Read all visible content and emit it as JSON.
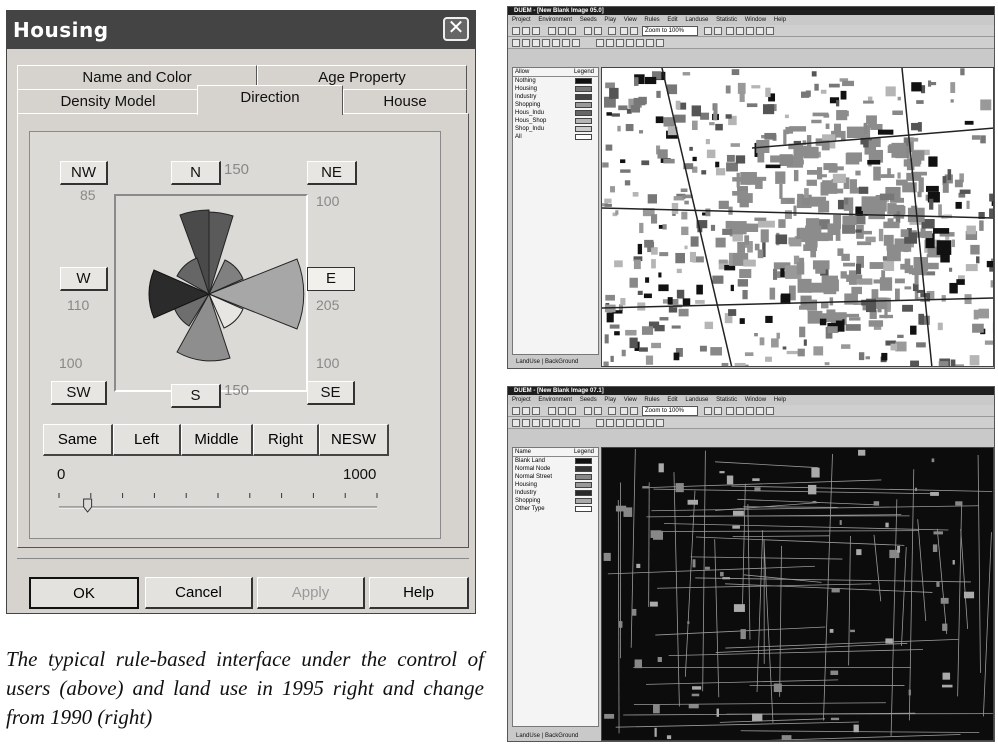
{
  "dialog": {
    "title": "Housing",
    "close_symbol": "✕",
    "tabs_back": [
      "Name and Color",
      "Age Property"
    ],
    "tabs_front": [
      "Density Model",
      "Direction",
      "House"
    ],
    "directions": {
      "nw": {
        "label": "NW",
        "value": "85"
      },
      "n": {
        "label": "N",
        "value": "150"
      },
      "ne": {
        "label": "NE",
        "value": "100"
      },
      "w": {
        "label": "W",
        "value": "110"
      },
      "e": {
        "label": "E",
        "value": "205"
      },
      "sw": {
        "label": "SW",
        "value": "100"
      },
      "s": {
        "label": "S",
        "value": "150"
      },
      "se": {
        "label": "SE",
        "value": "100"
      }
    },
    "mode_buttons": [
      "Same",
      "Left",
      "Middle",
      "Right",
      "NESW"
    ],
    "slider": {
      "min": "0",
      "max": "1000",
      "value_fraction": 0.09
    },
    "buttons": {
      "ok": "OK",
      "cancel": "Cancel",
      "apply": "Apply",
      "help": "Help"
    }
  },
  "caption": "The typical rule-based interface under the control of users (above) and land use in 1995 right and change from 1990 (right)",
  "screens": [
    {
      "title": "DUEM - [New Blank Image 05.0]",
      "menu": [
        "Project",
        "Environment",
        "Seeds",
        "Play",
        "View",
        "Rules",
        "Edit",
        "Landuse",
        "Statistic",
        "Window",
        "Help"
      ],
      "zoom": "Zoom to 100%",
      "legend_header": [
        "Allow",
        "Legend"
      ],
      "legend": [
        "Nothing",
        "Housing",
        "Industry",
        "Shopping",
        "Hous_Indu",
        "Hous_Shop",
        "Shop_Indu",
        "All"
      ],
      "legend_colors": [
        "#111111",
        "#777777",
        "#444444",
        "#999999",
        "#666666",
        "#b5b5b5",
        "#cccccc",
        "#ffffff"
      ],
      "bottom_tabs": [
        "LandUse",
        "BackGround"
      ]
    },
    {
      "title": "DUEM - [New Blank Image 07.1]",
      "menu": [
        "Project",
        "Environment",
        "Seeds",
        "Play",
        "View",
        "Rules",
        "Edit",
        "Landuse",
        "Statistic",
        "Window",
        "Help"
      ],
      "zoom": "Zoom to 100%",
      "legend_header": [
        "Name",
        "Legend"
      ],
      "legend": [
        "Blank Land",
        "Normal Node",
        "Normal Street",
        "Housing",
        "Industry",
        "Shopping",
        "Other Type"
      ],
      "legend_colors": [
        "#111111",
        "#333333",
        "#888888",
        "#999999",
        "#2a2a2a",
        "#aaaaaa",
        "#ffffff"
      ],
      "bottom_tabs": [
        "LandUse",
        "BackGround"
      ]
    }
  ]
}
